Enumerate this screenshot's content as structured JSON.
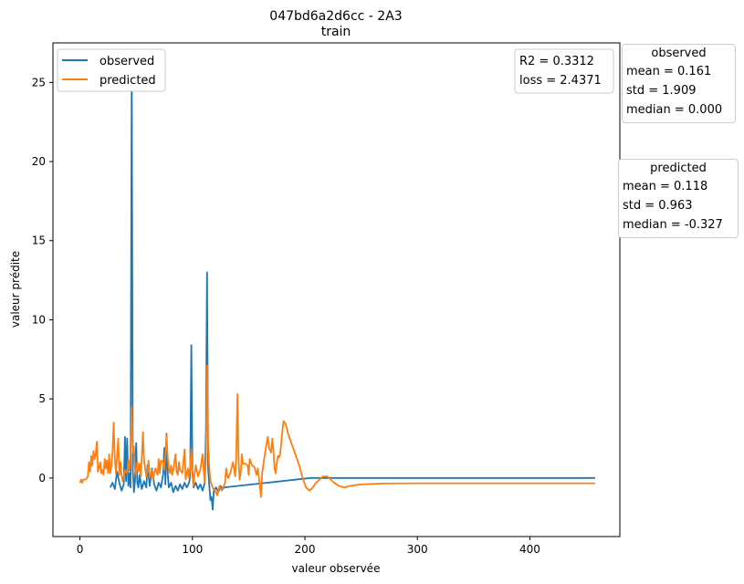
{
  "chart_data": {
    "type": "line",
    "title": "047bd6a2d6cc - 2A3",
    "subtitle": "train",
    "xlabel": "valeur observée",
    "ylabel": "valeur prédite",
    "xlim": [
      -24,
      480
    ],
    "ylim": [
      -3.7,
      27.5
    ],
    "xticks": [
      0,
      100,
      200,
      300,
      400
    ],
    "yticks": [
      0,
      5,
      10,
      15,
      20,
      25
    ],
    "grid": false,
    "legend_position": "top-left",
    "series": [
      {
        "name": "observed",
        "color": "#1f77b4",
        "points": [
          [
            27,
            -0.6
          ],
          [
            29,
            -0.3
          ],
          [
            31,
            -0.7
          ],
          [
            33,
            0.4
          ],
          [
            35,
            -0.3
          ],
          [
            37,
            -0.8
          ],
          [
            39,
            -0.4
          ],
          [
            40,
            2.6
          ],
          [
            41,
            -0.2
          ],
          [
            42,
            2.5
          ],
          [
            43,
            -0.5
          ],
          [
            44,
            0.3
          ],
          [
            45,
            -0.6
          ],
          [
            46,
            26.2
          ],
          [
            47,
            0.5
          ],
          [
            48,
            -0.9
          ],
          [
            49,
            -0.2
          ],
          [
            50,
            2.2
          ],
          [
            51,
            -0.3
          ],
          [
            52,
            -0.6
          ],
          [
            53,
            0.2
          ],
          [
            55,
            -0.7
          ],
          [
            57,
            -0.2
          ],
          [
            59,
            -0.6
          ],
          [
            60,
            0.8
          ],
          [
            62,
            -0.5
          ],
          [
            64,
            0.6
          ],
          [
            66,
            -0.4
          ],
          [
            68,
            -0.8
          ],
          [
            70,
            -0.3
          ],
          [
            72,
            -0.6
          ],
          [
            74,
            0.3
          ],
          [
            75,
            1.9
          ],
          [
            76,
            -0.4
          ],
          [
            77,
            2.8
          ],
          [
            78,
            0.3
          ],
          [
            79,
            -0.6
          ],
          [
            81,
            -0.3
          ],
          [
            83,
            -0.9
          ],
          [
            85,
            -0.5
          ],
          [
            87,
            -0.8
          ],
          [
            89,
            -0.4
          ],
          [
            91,
            -0.7
          ],
          [
            93,
            -0.3
          ],
          [
            95,
            -0.6
          ],
          [
            97,
            -0.3
          ],
          [
            98,
            0.1
          ],
          [
            99,
            8.4
          ],
          [
            100,
            0.5
          ],
          [
            101,
            -0.6
          ],
          [
            103,
            -0.3
          ],
          [
            105,
            -0.7
          ],
          [
            107,
            -0.4
          ],
          [
            109,
            -0.8
          ],
          [
            111,
            -0.3
          ],
          [
            112,
            3.0
          ],
          [
            113,
            13.0
          ],
          [
            114,
            0.6
          ],
          [
            115,
            -0.5
          ],
          [
            116,
            -1.4
          ],
          [
            117,
            -1.2
          ],
          [
            118,
            -2.0
          ],
          [
            119,
            -0.8
          ],
          [
            121,
            -0.6
          ],
          [
            123,
            -0.9
          ],
          [
            125,
            -0.5
          ],
          [
            127,
            -0.7
          ],
          [
            128,
            -0.6
          ],
          [
            205,
            0.0
          ],
          [
            458,
            0.0
          ]
        ]
      },
      {
        "name": "predicted",
        "color": "#ff7f0e",
        "points": [
          [
            0,
            -0.3
          ],
          [
            1,
            -0.1
          ],
          [
            2,
            -0.3
          ],
          [
            3,
            -0.1
          ],
          [
            5,
            -0.1
          ],
          [
            7,
            0.1
          ],
          [
            8,
            1.0
          ],
          [
            9,
            0.4
          ],
          [
            10,
            1.4
          ],
          [
            11,
            0.8
          ],
          [
            12,
            1.7
          ],
          [
            13,
            1.2
          ],
          [
            14,
            1.5
          ],
          [
            15,
            2.3
          ],
          [
            16,
            0.4
          ],
          [
            18,
            1.0
          ],
          [
            19,
            0.3
          ],
          [
            20,
            0.5
          ],
          [
            21,
            0.2
          ],
          [
            22,
            1.2
          ],
          [
            23,
            0.6
          ],
          [
            24,
            1.1
          ],
          [
            25,
            0.3
          ],
          [
            26,
            1.5
          ],
          [
            27,
            0.3
          ],
          [
            28,
            0.8
          ],
          [
            29,
            1.7
          ],
          [
            30,
            3.5
          ],
          [
            31,
            1.2
          ],
          [
            32,
            0.3
          ],
          [
            34,
            2.5
          ],
          [
            35,
            0.2
          ],
          [
            36,
            1.0
          ],
          [
            37,
            0.2
          ],
          [
            38,
            -0.2
          ],
          [
            40,
            0.5
          ],
          [
            42,
            0.3
          ],
          [
            43,
            1.1
          ],
          [
            44,
            0.5
          ],
          [
            45,
            1.5
          ],
          [
            46,
            4.5
          ],
          [
            47,
            1.6
          ],
          [
            48,
            2.0
          ],
          [
            49,
            0.6
          ],
          [
            50,
            0.2
          ],
          [
            51,
            1.0
          ],
          [
            52,
            0.4
          ],
          [
            53,
            0.9
          ],
          [
            54,
            0.1
          ],
          [
            55,
            1.3
          ],
          [
            56,
            2.9
          ],
          [
            57,
            1.1
          ],
          [
            58,
            0.6
          ],
          [
            59,
            0.1
          ],
          [
            60,
            0.4
          ],
          [
            61,
            1.1
          ],
          [
            62,
            0.0
          ],
          [
            64,
            0.5
          ],
          [
            65,
            -0.1
          ],
          [
            67,
            0.6
          ],
          [
            69,
            0.2
          ],
          [
            70,
            1.2
          ],
          [
            71,
            0.3
          ],
          [
            72,
            1.1
          ],
          [
            74,
            1.0
          ],
          [
            75,
            0.5
          ],
          [
            76,
            1.5
          ],
          [
            77,
            2.7
          ],
          [
            78,
            1.3
          ],
          [
            79,
            0.6
          ],
          [
            80,
            0.3
          ],
          [
            81,
            0.8
          ],
          [
            82,
            0.2
          ],
          [
            83,
            0.5
          ],
          [
            85,
            1.5
          ],
          [
            86,
            0.4
          ],
          [
            87,
            0.2
          ],
          [
            88,
            1.0
          ],
          [
            89,
            0.5
          ],
          [
            91,
            0.3
          ],
          [
            93,
            1.8
          ],
          [
            94,
            -0.1
          ],
          [
            95,
            0.3
          ],
          [
            96,
            0.6
          ],
          [
            97,
            0.0
          ],
          [
            98,
            0.7
          ],
          [
            99,
            1.8
          ],
          [
            100,
            0.2
          ],
          [
            101,
            -0.5
          ],
          [
            102,
            0.3
          ],
          [
            103,
            0.8
          ],
          [
            105,
            0.1
          ],
          [
            107,
            0.5
          ],
          [
            109,
            1.5
          ],
          [
            110,
            0.5
          ],
          [
            111,
            -0.3
          ],
          [
            112,
            1.2
          ],
          [
            113,
            7.1
          ],
          [
            114,
            2.0
          ],
          [
            115,
            0.6
          ],
          [
            116,
            -0.2
          ],
          [
            118,
            -0.6
          ],
          [
            120,
            -0.8
          ],
          [
            122,
            -1.1
          ],
          [
            124,
            -0.5
          ],
          [
            126,
            -0.8
          ],
          [
            128,
            -0.5
          ],
          [
            129,
            -0.3
          ],
          [
            130,
            0.6
          ],
          [
            131,
            0.1
          ],
          [
            132,
            0.0
          ],
          [
            134,
            0.4
          ],
          [
            136,
            1.0
          ],
          [
            137,
            0.6
          ],
          [
            138,
            0.1
          ],
          [
            139,
            1.4
          ],
          [
            140,
            5.3
          ],
          [
            141,
            1.2
          ],
          [
            142,
            -0.1
          ],
          [
            143,
            0.4
          ],
          [
            144,
            1.5
          ],
          [
            145,
            0.9
          ],
          [
            147,
            0.9
          ],
          [
            149,
            0.8
          ],
          [
            150,
            0.2
          ],
          [
            151,
            1.2
          ],
          [
            153,
            0.8
          ],
          [
            155,
            0.7
          ],
          [
            157,
            0.2
          ],
          [
            158,
            0.6
          ],
          [
            159,
            0.1
          ],
          [
            161,
            -1.2
          ],
          [
            162,
            0.3
          ],
          [
            164,
            1.3
          ],
          [
            166,
            2.2
          ],
          [
            167,
            2.6
          ],
          [
            168,
            1.9
          ],
          [
            170,
            1.6
          ],
          [
            171,
            2.5
          ],
          [
            172,
            1.8
          ],
          [
            173,
            0.6
          ],
          [
            174,
            0.3
          ],
          [
            175,
            0.9
          ],
          [
            176,
            1.4
          ],
          [
            177,
            1.3
          ],
          [
            178,
            1.5
          ],
          [
            179,
            2.2
          ],
          [
            180,
            3.0
          ],
          [
            181,
            3.6
          ],
          [
            183,
            3.4
          ],
          [
            185,
            2.8
          ],
          [
            188,
            2.2
          ],
          [
            191,
            1.6
          ],
          [
            195,
            0.8
          ],
          [
            198,
            0.0
          ],
          [
            201,
            -0.6
          ],
          [
            204,
            -0.8
          ],
          [
            207,
            -0.6
          ],
          [
            210,
            -0.3
          ],
          [
            213,
            -0.1
          ],
          [
            216,
            0.1
          ],
          [
            220,
            0.1
          ],
          [
            223,
            -0.1
          ],
          [
            226,
            -0.3
          ],
          [
            230,
            -0.5
          ],
          [
            235,
            -0.6
          ],
          [
            240,
            -0.5
          ],
          [
            250,
            -0.4
          ],
          [
            270,
            -0.35
          ],
          [
            300,
            -0.33
          ],
          [
            350,
            -0.33
          ],
          [
            400,
            -0.33
          ],
          [
            458,
            -0.33
          ]
        ]
      }
    ],
    "annotation": [
      "R2 = 0.3312",
      "loss = 2.4371"
    ],
    "stats_boxes": [
      {
        "title": "observed",
        "lines": [
          "mean = 0.161",
          "std = 1.909",
          "median = 0.000"
        ]
      },
      {
        "title": "predicted",
        "lines": [
          "mean = 0.118",
          "std = 0.963",
          "median = -0.327"
        ]
      }
    ]
  }
}
